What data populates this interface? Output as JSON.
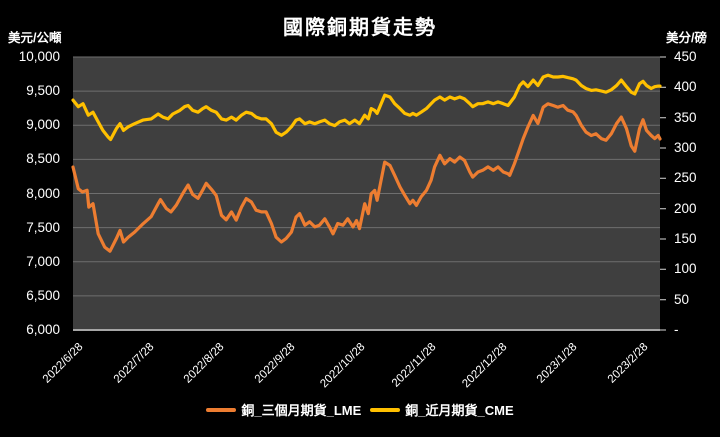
{
  "title": "國際銅期貨走勢",
  "left_axis": {
    "unit": "美元/公噸",
    "ticks": [
      "10,000",
      "9,500",
      "9,000",
      "8,500",
      "8,000",
      "7,500",
      "7,000",
      "6,500",
      "6,000"
    ],
    "min": 6000,
    "max": 10000,
    "step": 500
  },
  "right_axis": {
    "unit": "美分/磅",
    "ticks": [
      "450",
      "400",
      "350",
      "300",
      "250",
      "200",
      "150",
      "100",
      "50",
      "-"
    ],
    "min": 0,
    "max": 450,
    "step": 50
  },
  "x_axis": {
    "labels": [
      "2022/6/28",
      "2022/7/28",
      "2022/8/28",
      "2022/9/28",
      "2022/10/28",
      "2022/11/28",
      "2022/12/28",
      "2023/1/28",
      "2023/2/28"
    ]
  },
  "legend": [
    {
      "label": "銅_三個月期貨_LME",
      "color": "#ED7D31"
    },
    {
      "label": "銅_近月期貨_CME",
      "color": "#FFC000"
    }
  ],
  "colors": {
    "background": "#000000",
    "plot_background": "#3F3F3F",
    "gridline": "#6F6F6F",
    "axis_line": "#A6A6A6",
    "text": "#FFFFFF",
    "lme_line": "#ED7D31",
    "cme_line": "#FFC000"
  },
  "chart_data": {
    "type": "line",
    "title": "國際銅期貨走勢",
    "x_labels": [
      "2022/6/28",
      "2022/7/28",
      "2022/8/28",
      "2022/9/28",
      "2022/10/28",
      "2022/11/28",
      "2022/12/28",
      "2023/1/28",
      "2023/2/28"
    ],
    "left_ylim": [
      6000,
      10000
    ],
    "right_ylim": [
      0,
      450
    ],
    "grid": true,
    "legend_position": "bottom",
    "note": "points are [x_fraction_across_plot, value]; x spans 2022/6/28 to ~2023/3/7",
    "series": [
      {
        "name": "銅_三個月期貨_LME",
        "axis": "left",
        "unit": "USD/metric ton",
        "color": "#ED7D31",
        "points": [
          [
            0.0,
            8388
          ],
          [
            0.009,
            8070
          ],
          [
            0.016,
            8022
          ],
          [
            0.024,
            8047
          ],
          [
            0.027,
            7800
          ],
          [
            0.034,
            7850
          ],
          [
            0.043,
            7410
          ],
          [
            0.054,
            7215
          ],
          [
            0.063,
            7155
          ],
          [
            0.074,
            7340
          ],
          [
            0.08,
            7460
          ],
          [
            0.086,
            7290
          ],
          [
            0.094,
            7360
          ],
          [
            0.105,
            7435
          ],
          [
            0.119,
            7555
          ],
          [
            0.133,
            7660
          ],
          [
            0.145,
            7850
          ],
          [
            0.149,
            7910
          ],
          [
            0.159,
            7780
          ],
          [
            0.167,
            7730
          ],
          [
            0.176,
            7830
          ],
          [
            0.187,
            8000
          ],
          [
            0.196,
            8125
          ],
          [
            0.204,
            7985
          ],
          [
            0.213,
            7930
          ],
          [
            0.221,
            8050
          ],
          [
            0.227,
            8150
          ],
          [
            0.236,
            8060
          ],
          [
            0.244,
            7970
          ],
          [
            0.253,
            7680
          ],
          [
            0.261,
            7615
          ],
          [
            0.27,
            7730
          ],
          [
            0.278,
            7610
          ],
          [
            0.287,
            7800
          ],
          [
            0.295,
            7925
          ],
          [
            0.304,
            7875
          ],
          [
            0.312,
            7755
          ],
          [
            0.321,
            7730
          ],
          [
            0.329,
            7730
          ],
          [
            0.338,
            7560
          ],
          [
            0.346,
            7360
          ],
          [
            0.355,
            7290
          ],
          [
            0.363,
            7340
          ],
          [
            0.372,
            7435
          ],
          [
            0.38,
            7655
          ],
          [
            0.386,
            7705
          ],
          [
            0.395,
            7535
          ],
          [
            0.403,
            7585
          ],
          [
            0.412,
            7510
          ],
          [
            0.42,
            7535
          ],
          [
            0.429,
            7630
          ],
          [
            0.437,
            7510
          ],
          [
            0.443,
            7410
          ],
          [
            0.451,
            7560
          ],
          [
            0.46,
            7535
          ],
          [
            0.468,
            7630
          ],
          [
            0.477,
            7510
          ],
          [
            0.483,
            7605
          ],
          [
            0.488,
            7485
          ],
          [
            0.497,
            7850
          ],
          [
            0.503,
            7705
          ],
          [
            0.508,
            7995
          ],
          [
            0.514,
            8045
          ],
          [
            0.518,
            7900
          ],
          [
            0.531,
            8460
          ],
          [
            0.54,
            8410
          ],
          [
            0.548,
            8265
          ],
          [
            0.557,
            8095
          ],
          [
            0.565,
            7975
          ],
          [
            0.574,
            7850
          ],
          [
            0.579,
            7900
          ],
          [
            0.585,
            7825
          ],
          [
            0.593,
            7950
          ],
          [
            0.602,
            8045
          ],
          [
            0.61,
            8195
          ],
          [
            0.616,
            8390
          ],
          [
            0.625,
            8560
          ],
          [
            0.633,
            8435
          ],
          [
            0.642,
            8510
          ],
          [
            0.65,
            8460
          ],
          [
            0.659,
            8535
          ],
          [
            0.667,
            8485
          ],
          [
            0.676,
            8315
          ],
          [
            0.681,
            8240
          ],
          [
            0.69,
            8315
          ],
          [
            0.698,
            8340
          ],
          [
            0.707,
            8390
          ],
          [
            0.716,
            8340
          ],
          [
            0.724,
            8390
          ],
          [
            0.733,
            8315
          ],
          [
            0.741,
            8290
          ],
          [
            0.744,
            8265
          ],
          [
            0.752,
            8435
          ],
          [
            0.761,
            8655
          ],
          [
            0.767,
            8805
          ],
          [
            0.775,
            8975
          ],
          [
            0.784,
            9145
          ],
          [
            0.792,
            9025
          ],
          [
            0.801,
            9265
          ],
          [
            0.809,
            9315
          ],
          [
            0.818,
            9290
          ],
          [
            0.826,
            9265
          ],
          [
            0.835,
            9290
          ],
          [
            0.843,
            9220
          ],
          [
            0.852,
            9195
          ],
          [
            0.857,
            9145
          ],
          [
            0.866,
            9000
          ],
          [
            0.874,
            8900
          ],
          [
            0.883,
            8850
          ],
          [
            0.891,
            8875
          ],
          [
            0.9,
            8805
          ],
          [
            0.908,
            8780
          ],
          [
            0.917,
            8875
          ],
          [
            0.926,
            9025
          ],
          [
            0.934,
            9120
          ],
          [
            0.943,
            8950
          ],
          [
            0.951,
            8700
          ],
          [
            0.957,
            8620
          ],
          [
            0.965,
            8950
          ],
          [
            0.971,
            9080
          ],
          [
            0.977,
            8925
          ],
          [
            0.985,
            8850
          ],
          [
            0.991,
            8805
          ],
          [
            0.997,
            8850
          ],
          [
            1.0,
            8800
          ]
        ]
      },
      {
        "name": "銅_近月期貨_CME",
        "axis": "right",
        "unit": "US cents/pound",
        "color": "#FFC000",
        "points": [
          [
            0.0,
            379
          ],
          [
            0.009,
            368
          ],
          [
            0.017,
            373
          ],
          [
            0.026,
            354
          ],
          [
            0.034,
            359
          ],
          [
            0.043,
            343
          ],
          [
            0.051,
            329
          ],
          [
            0.06,
            318
          ],
          [
            0.064,
            314
          ],
          [
            0.074,
            332
          ],
          [
            0.08,
            340
          ],
          [
            0.086,
            329
          ],
          [
            0.094,
            335
          ],
          [
            0.105,
            340
          ],
          [
            0.119,
            346
          ],
          [
            0.133,
            348
          ],
          [
            0.145,
            356
          ],
          [
            0.153,
            351
          ],
          [
            0.162,
            348
          ],
          [
            0.17,
            356
          ],
          [
            0.182,
            362
          ],
          [
            0.19,
            368
          ],
          [
            0.196,
            370
          ],
          [
            0.204,
            362
          ],
          [
            0.213,
            359
          ],
          [
            0.221,
            365
          ],
          [
            0.227,
            368
          ],
          [
            0.236,
            362
          ],
          [
            0.244,
            359
          ],
          [
            0.253,
            348
          ],
          [
            0.261,
            346
          ],
          [
            0.27,
            351
          ],
          [
            0.278,
            346
          ],
          [
            0.287,
            354
          ],
          [
            0.295,
            359
          ],
          [
            0.304,
            357
          ],
          [
            0.312,
            351
          ],
          [
            0.321,
            348
          ],
          [
            0.329,
            348
          ],
          [
            0.338,
            340
          ],
          [
            0.346,
            326
          ],
          [
            0.355,
            321
          ],
          [
            0.363,
            326
          ],
          [
            0.372,
            335
          ],
          [
            0.38,
            346
          ],
          [
            0.386,
            348
          ],
          [
            0.395,
            340
          ],
          [
            0.403,
            343
          ],
          [
            0.412,
            340
          ],
          [
            0.42,
            343
          ],
          [
            0.429,
            346
          ],
          [
            0.437,
            340
          ],
          [
            0.446,
            337
          ],
          [
            0.454,
            343
          ],
          [
            0.463,
            346
          ],
          [
            0.471,
            340
          ],
          [
            0.48,
            346
          ],
          [
            0.488,
            340
          ],
          [
            0.497,
            354
          ],
          [
            0.503,
            348
          ],
          [
            0.508,
            365
          ],
          [
            0.514,
            362
          ],
          [
            0.518,
            357
          ],
          [
            0.531,
            387
          ],
          [
            0.54,
            384
          ],
          [
            0.548,
            373
          ],
          [
            0.557,
            365
          ],
          [
            0.565,
            357
          ],
          [
            0.574,
            354
          ],
          [
            0.579,
            357
          ],
          [
            0.585,
            354
          ],
          [
            0.593,
            359
          ],
          [
            0.602,
            365
          ],
          [
            0.61,
            373
          ],
          [
            0.616,
            379
          ],
          [
            0.625,
            384
          ],
          [
            0.633,
            379
          ],
          [
            0.642,
            384
          ],
          [
            0.65,
            381
          ],
          [
            0.659,
            384
          ],
          [
            0.667,
            381
          ],
          [
            0.676,
            373
          ],
          [
            0.681,
            368
          ],
          [
            0.69,
            373
          ],
          [
            0.698,
            373
          ],
          [
            0.707,
            376
          ],
          [
            0.716,
            373
          ],
          [
            0.724,
            376
          ],
          [
            0.733,
            373
          ],
          [
            0.741,
            370
          ],
          [
            0.752,
            384
          ],
          [
            0.761,
            403
          ],
          [
            0.767,
            409
          ],
          [
            0.775,
            401
          ],
          [
            0.784,
            412
          ],
          [
            0.792,
            403
          ],
          [
            0.801,
            417
          ],
          [
            0.809,
            420
          ],
          [
            0.818,
            417
          ],
          [
            0.826,
            417
          ],
          [
            0.835,
            418
          ],
          [
            0.843,
            416
          ],
          [
            0.852,
            414
          ],
          [
            0.857,
            412
          ],
          [
            0.866,
            403
          ],
          [
            0.874,
            398
          ],
          [
            0.883,
            395
          ],
          [
            0.891,
            396
          ],
          [
            0.9,
            394
          ],
          [
            0.908,
            392
          ],
          [
            0.917,
            396
          ],
          [
            0.926,
            403
          ],
          [
            0.934,
            412
          ],
          [
            0.943,
            401
          ],
          [
            0.951,
            392
          ],
          [
            0.957,
            389
          ],
          [
            0.965,
            406
          ],
          [
            0.971,
            410
          ],
          [
            0.977,
            403
          ],
          [
            0.985,
            398
          ],
          [
            0.991,
            401
          ],
          [
            0.997,
            402
          ],
          [
            1.0,
            402
          ]
        ]
      }
    ]
  }
}
